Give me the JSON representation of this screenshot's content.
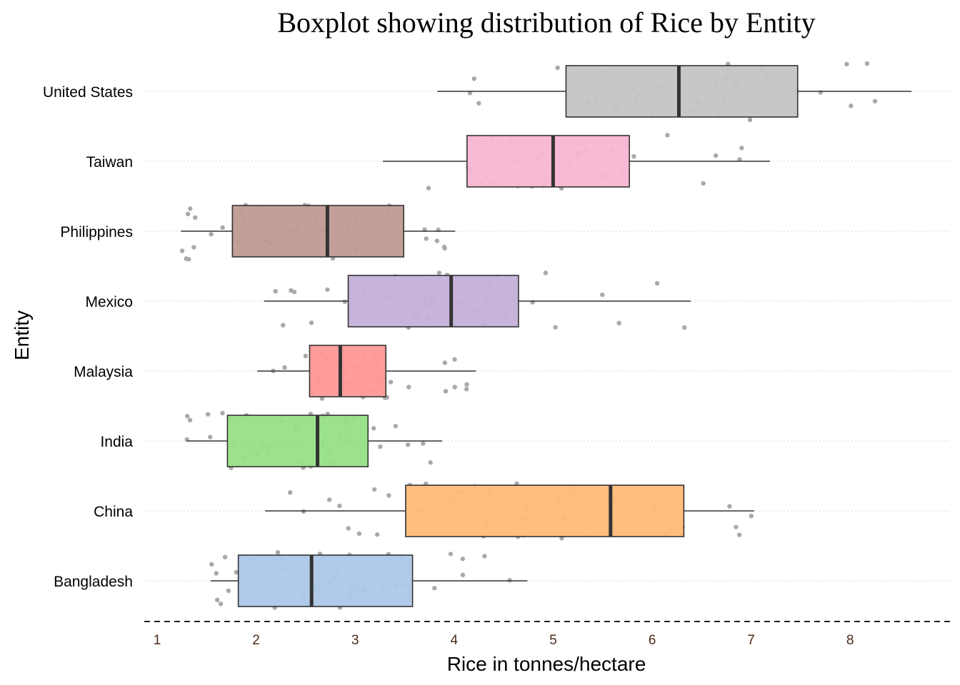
{
  "chart_data": {
    "type": "boxplot",
    "orientation": "horizontal",
    "title": "Boxplot showing distribution of Rice by Entity",
    "xlabel": "Rice in tonnes/hectare",
    "ylabel": "Entity",
    "xlim": [
      1,
      9
    ],
    "x_ticks": [
      "1",
      "2",
      "3",
      "4",
      "5",
      "6",
      "7",
      "8"
    ],
    "grid": "dotted horizontal lines at each category",
    "baseline": "dashed horizontal line below the plot",
    "point_color": "#a9a9a9",
    "categories": [
      {
        "name": "United States",
        "color": "#c4c4c4",
        "min": 3.83,
        "q1": 5.13,
        "median": 6.27,
        "q3": 7.47,
        "max": 8.62
      },
      {
        "name": "Taiwan",
        "color": "#f7b5d2",
        "min": 3.28,
        "q1": 4.13,
        "median": 5.0,
        "q3": 5.77,
        "max": 7.19
      },
      {
        "name": "Philippines",
        "color": "#c09a93",
        "min": 1.24,
        "q1": 1.76,
        "median": 2.72,
        "q3": 3.49,
        "max": 4.01
      },
      {
        "name": "Mexico",
        "color": "#c3b0d8",
        "min": 2.08,
        "q1": 2.93,
        "median": 3.97,
        "q3": 4.65,
        "max": 6.39
      },
      {
        "name": "Malaysia",
        "color": "#ff9896",
        "min": 2.01,
        "q1": 2.54,
        "median": 2.85,
        "q3": 3.31,
        "max": 4.22
      },
      {
        "name": "India",
        "color": "#97e086",
        "min": 1.3,
        "q1": 1.71,
        "median": 2.62,
        "q3": 3.13,
        "max": 3.88
      },
      {
        "name": "China",
        "color": "#ffbb78",
        "min": 2.09,
        "q1": 3.51,
        "median": 5.58,
        "q3": 6.32,
        "max": 7.03
      },
      {
        "name": "Bangladesh",
        "color": "#aec7e8",
        "min": 1.54,
        "q1": 1.82,
        "median": 2.56,
        "q3": 3.58,
        "max": 4.74
      }
    ]
  }
}
